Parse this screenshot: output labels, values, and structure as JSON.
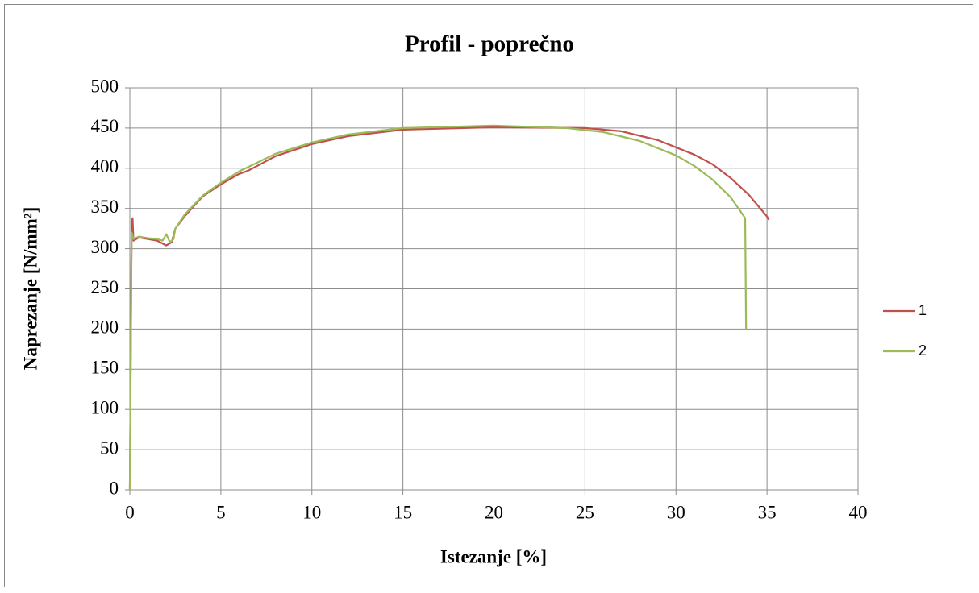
{
  "chart_data": {
    "type": "line",
    "title": "Profil - poprečno",
    "xlabel": "Istezanje [%]",
    "ylabel": "Naprezanje [N/mm²]",
    "xlim": [
      0,
      40
    ],
    "xticks": [
      0,
      5,
      10,
      15,
      20,
      25,
      30,
      35,
      40
    ],
    "ylim": [
      0,
      500
    ],
    "yticks": [
      0,
      50,
      100,
      150,
      200,
      250,
      300,
      350,
      400,
      450,
      500
    ],
    "grid": true,
    "legend": "right",
    "series": [
      {
        "name": "1",
        "color": "#c0504d",
        "x": [
          0,
          0.1,
          0.15,
          0.2,
          0.5,
          1,
          1.5,
          2,
          2.3,
          2.5,
          3,
          4,
          5,
          6,
          6.5,
          8,
          10,
          12,
          15,
          20,
          25,
          27,
          29,
          31,
          32,
          33,
          34,
          35,
          35.1
        ],
        "values": [
          0,
          330,
          338,
          310,
          314,
          312,
          310,
          304,
          308,
          325,
          340,
          365,
          380,
          393,
          397,
          415,
          430,
          440,
          448,
          451,
          450,
          446,
          435,
          417,
          405,
          388,
          367,
          340,
          336
        ]
      },
      {
        "name": "2",
        "color": "#9bbb59",
        "x": [
          0,
          0.1,
          0.2,
          0.5,
          1,
          1.5,
          1.8,
          2,
          2.2,
          2.4,
          2.5,
          3,
          4,
          5,
          6,
          8,
          10,
          12,
          15,
          20,
          24,
          26,
          28,
          30,
          31,
          32,
          33,
          33.8,
          33.85
        ],
        "values": [
          0,
          320,
          312,
          315,
          313,
          312,
          310,
          318,
          308,
          312,
          325,
          342,
          366,
          382,
          396,
          418,
          432,
          442,
          450,
          453,
          450,
          445,
          434,
          416,
          403,
          386,
          364,
          338,
          200
        ]
      }
    ]
  }
}
